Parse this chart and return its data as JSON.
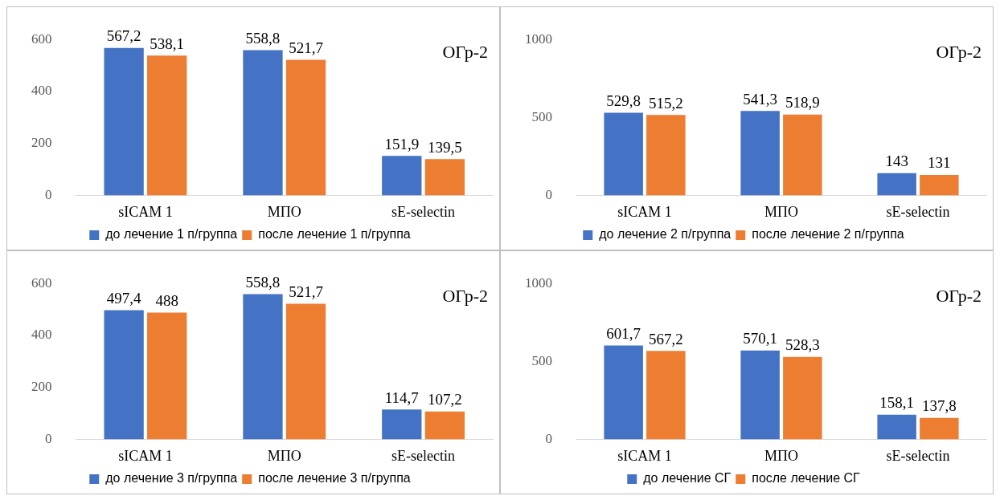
{
  "chart_data": [
    {
      "type": "bar",
      "categories": [
        "sICAM 1",
        "МПО",
        "sE-selectin"
      ],
      "ylim": [
        0,
        600
      ],
      "yticks": [
        0,
        200,
        400,
        600
      ],
      "legend": "bottom",
      "annotations": [
        "ОГр-2"
      ],
      "series": [
        {
          "name": "до лечение 1 п/группа",
          "color": "#4472c4",
          "values": [
            567.2,
            558.8,
            151.9
          ],
          "value_labels": [
            "567,2",
            "558,8",
            "151,9"
          ]
        },
        {
          "name": "после лечение 1 п/группа",
          "color": "#ed7d31",
          "values": [
            538.1,
            521.7,
            139.5
          ],
          "value_labels": [
            "538,1",
            "521,7",
            "139,5"
          ]
        }
      ]
    },
    {
      "type": "bar",
      "categories": [
        "sICAM 1",
        "МПО",
        "sE-selectin"
      ],
      "ylim": [
        0,
        1000
      ],
      "yticks": [
        0,
        500,
        1000
      ],
      "legend": "bottom",
      "annotations": [
        "ОГр-2"
      ],
      "series": [
        {
          "name": "до лечение 2 п/группа",
          "color": "#4472c4",
          "values": [
            529.8,
            541.3,
            143
          ],
          "value_labels": [
            "529,8",
            "541,3",
            "143"
          ]
        },
        {
          "name": "после лечение 2 п/группа",
          "color": "#ed7d31",
          "values": [
            515.2,
            518.9,
            131
          ],
          "value_labels": [
            "515,2",
            "518,9",
            "131"
          ]
        }
      ]
    },
    {
      "type": "bar",
      "categories": [
        "sICAM 1",
        "МПО",
        "sE-selectin"
      ],
      "ylim": [
        0,
        600
      ],
      "yticks": [
        0,
        200,
        400,
        600
      ],
      "legend": "bottom",
      "annotations": [
        "ОГр-2"
      ],
      "series": [
        {
          "name": "до лечение 3 п/группа",
          "color": "#4472c4",
          "values": [
            497.4,
            558.8,
            114.7
          ],
          "value_labels": [
            "497,4",
            "558,8",
            "114,7"
          ]
        },
        {
          "name": "после лечение 3 п/группа",
          "color": "#ed7d31",
          "values": [
            488,
            521.7,
            107.2
          ],
          "value_labels": [
            "488",
            "521,7",
            "107,2"
          ]
        }
      ]
    },
    {
      "type": "bar",
      "categories": [
        "sICAM 1",
        "МПО",
        "sE-selectin"
      ],
      "ylim": [
        0,
        1000
      ],
      "yticks": [
        0,
        500,
        1000
      ],
      "legend": "bottom",
      "annotations": [
        "ОГр-2"
      ],
      "series": [
        {
          "name": "до лечение СГ",
          "color": "#4472c4",
          "values": [
            601.7,
            570.1,
            158.1
          ],
          "value_labels": [
            "601,7",
            "570,1",
            "158,1"
          ]
        },
        {
          "name": "после лечение СГ",
          "color": "#ed7d31",
          "values": [
            567.2,
            528.3,
            137.8
          ],
          "value_labels": [
            "567,2",
            "528,3",
            "137,8"
          ]
        }
      ]
    }
  ]
}
